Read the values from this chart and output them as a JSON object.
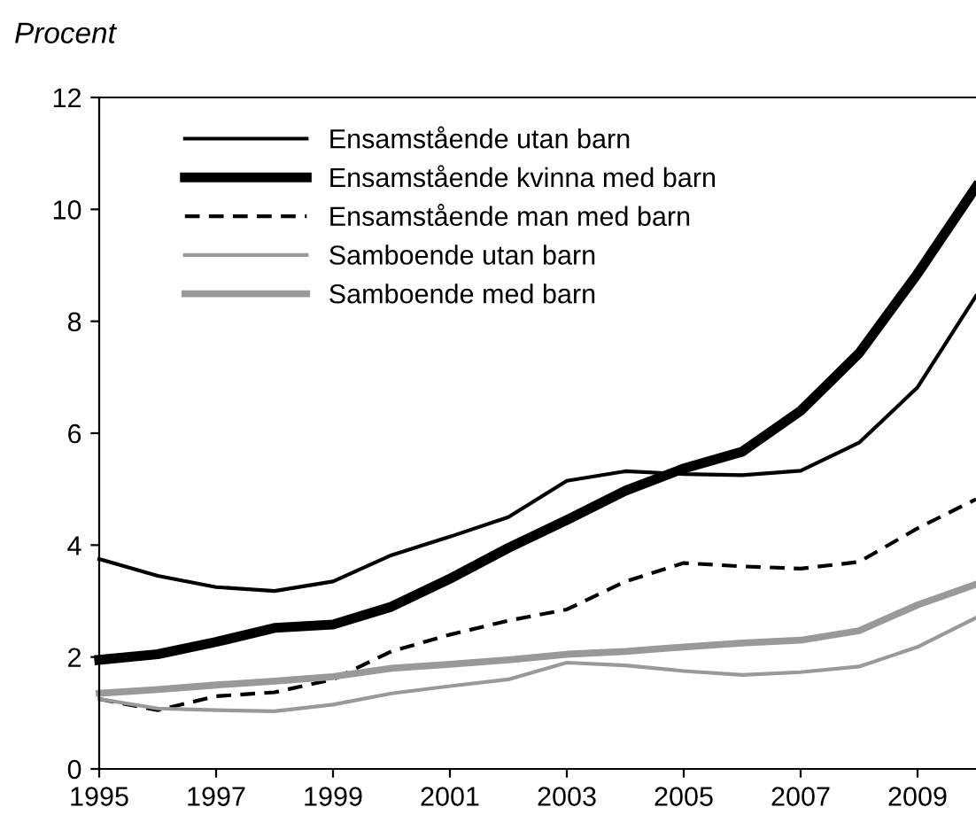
{
  "chart_data": {
    "type": "line",
    "ylabel": "Procent",
    "x": [
      1995,
      1996,
      1997,
      1998,
      1999,
      2000,
      2001,
      2002,
      2003,
      2004,
      2005,
      2006,
      2007,
      2008,
      2009,
      2010
    ],
    "series": [
      {
        "name": "Ensamstående utan barn",
        "color": "#000000",
        "line_style": "solid",
        "values": [
          3.75,
          3.45,
          3.25,
          3.18,
          3.35,
          3.82,
          4.15,
          4.5,
          5.15,
          5.32,
          5.27,
          5.25,
          5.33,
          5.83,
          6.82,
          8.45
        ]
      },
      {
        "name": "Ensamstående kvinna med barn",
        "color": "#000000",
        "line_style": "solid",
        "values": [
          1.95,
          2.05,
          2.27,
          2.52,
          2.58,
          2.9,
          3.4,
          3.95,
          4.45,
          4.97,
          5.37,
          5.67,
          6.4,
          7.43,
          8.85,
          10.4
        ]
      },
      {
        "name": "Ensamstående man med barn",
        "color": "#000000",
        "line_style": "dashed",
        "values": [
          1.25,
          1.05,
          1.3,
          1.37,
          1.6,
          2.1,
          2.4,
          2.65,
          2.85,
          3.35,
          3.68,
          3.62,
          3.58,
          3.7,
          4.3,
          4.82
        ]
      },
      {
        "name": "Samboende utan barn",
        "color": "#999999",
        "line_style": "solid",
        "values": [
          1.25,
          1.08,
          1.05,
          1.03,
          1.15,
          1.35,
          1.48,
          1.6,
          1.9,
          1.85,
          1.75,
          1.68,
          1.73,
          1.83,
          2.18,
          2.7
        ]
      },
      {
        "name": "Samboende med barn",
        "color": "#999999",
        "line_style": "solid",
        "values": [
          1.35,
          1.42,
          1.5,
          1.57,
          1.65,
          1.8,
          1.87,
          1.95,
          2.05,
          2.1,
          2.18,
          2.25,
          2.3,
          2.47,
          2.93,
          3.3
        ]
      }
    ],
    "xlim": [
      1995,
      2010
    ],
    "xticks": [
      1995,
      1997,
      1999,
      2001,
      2003,
      2005,
      2007,
      2009
    ],
    "ylim": [
      0,
      12
    ],
    "yticks": [
      0,
      2,
      4,
      6,
      8,
      10,
      12
    ],
    "grid": false,
    "legend": "top left",
    "marker": "none"
  }
}
